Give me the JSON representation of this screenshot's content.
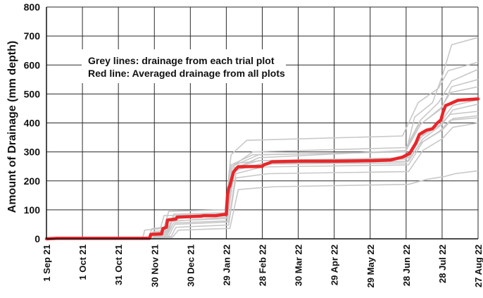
{
  "chart_data": {
    "type": "line",
    "ylabel": "Amount of Drainage (mm depth)",
    "xlabel": "",
    "ylim": [
      0,
      800
    ],
    "yticks": [
      0,
      100,
      200,
      300,
      400,
      500,
      600,
      700,
      800
    ],
    "xlim": [
      "2021-09-01",
      "2022-08-27"
    ],
    "xticks": [
      {
        "date": "2021-09-01",
        "label": "1 Sep 21"
      },
      {
        "date": "2021-10-01",
        "label": "1 Oct 21"
      },
      {
        "date": "2021-10-31",
        "label": "31 Oct 21"
      },
      {
        "date": "2021-11-30",
        "label": "30 Nov 21"
      },
      {
        "date": "2021-12-30",
        "label": "30 Dec 21"
      },
      {
        "date": "2022-01-29",
        "label": "29 Jan 22"
      },
      {
        "date": "2022-02-28",
        "label": "28 Feb 22"
      },
      {
        "date": "2022-03-30",
        "label": "30 Mar 22"
      },
      {
        "date": "2022-04-29",
        "label": "29 Apr 22"
      },
      {
        "date": "2022-05-29",
        "label": "29 May 22"
      },
      {
        "date": "2022-06-28",
        "label": "28 Jun 22"
      },
      {
        "date": "2022-07-28",
        "label": "28 Jul 22"
      },
      {
        "date": "2022-08-27",
        "label": "27 Aug 22"
      }
    ],
    "grid": true,
    "annotations": [
      "Grey lines: drainage from each trial plot",
      "Red line: Averaged drainage from all plots"
    ],
    "colors": {
      "average": "#e8262a",
      "plots": "#c8c8c8",
      "grid": "#2a2a2a"
    },
    "average_series": {
      "x": [
        "2021-09-01",
        "2021-09-10",
        "2021-10-01",
        "2021-11-15",
        "2021-11-26",
        "2021-11-27",
        "2021-12-06",
        "2021-12-07",
        "2021-12-10",
        "2021-12-11",
        "2021-12-18",
        "2021-12-19",
        "2022-01-08",
        "2022-01-10",
        "2022-01-20",
        "2022-01-27",
        "2022-01-29",
        "2022-01-30",
        "2022-01-31",
        "2022-02-01",
        "2022-02-02",
        "2022-02-03",
        "2022-02-04",
        "2022-02-06",
        "2022-02-07",
        "2022-02-08",
        "2022-02-28",
        "2022-03-01",
        "2022-03-06",
        "2022-03-08",
        "2022-04-01",
        "2022-05-01",
        "2022-06-01",
        "2022-06-15",
        "2022-06-25",
        "2022-07-01",
        "2022-07-06",
        "2022-07-09",
        "2022-07-12",
        "2022-07-15",
        "2022-07-20",
        "2022-07-24",
        "2022-07-27",
        "2022-07-29",
        "2022-07-31",
        "2022-08-03",
        "2022-08-10",
        "2022-08-27"
      ],
      "y": [
        0,
        2,
        2,
        2,
        2,
        15,
        17,
        35,
        40,
        65,
        68,
        75,
        78,
        80,
        80,
        84,
        84,
        150,
        175,
        183,
        200,
        215,
        230,
        240,
        245,
        249,
        250,
        255,
        262,
        266,
        268,
        268,
        270,
        272,
        282,
        295,
        330,
        360,
        368,
        375,
        380,
        400,
        410,
        440,
        460,
        465,
        478,
        483
      ]
    },
    "plot_series": [
      {
        "x": [
          "2021-09-01",
          "2021-11-20",
          "2021-11-22",
          "2021-12-05",
          "2021-12-08",
          "2022-01-28",
          "2022-02-02",
          "2022-02-20",
          "2022-06-28",
          "2022-07-05",
          "2022-07-20",
          "2022-07-28",
          "2022-08-05",
          "2022-08-27"
        ],
        "y": [
          0,
          0,
          30,
          35,
          80,
          85,
          255,
          290,
          300,
          420,
          470,
          560,
          670,
          695
        ]
      },
      {
        "x": [
          "2021-09-01",
          "2021-11-25",
          "2021-11-28",
          "2021-12-08",
          "2021-12-12",
          "2022-01-28",
          "2022-02-02",
          "2022-02-15",
          "2022-06-25",
          "2022-07-08",
          "2022-07-25",
          "2022-08-02",
          "2022-08-27"
        ],
        "y": [
          0,
          0,
          35,
          40,
          95,
          100,
          290,
          340,
          355,
          470,
          520,
          580,
          610
        ]
      },
      {
        "x": [
          "2021-09-01",
          "2021-11-26",
          "2021-11-28",
          "2021-12-10",
          "2021-12-15",
          "2022-01-29",
          "2022-02-03",
          "2022-02-20",
          "2022-06-28",
          "2022-07-10",
          "2022-07-25",
          "2022-08-05",
          "2022-08-27"
        ],
        "y": [
          0,
          0,
          20,
          25,
          70,
          80,
          250,
          300,
          315,
          410,
          470,
          545,
          585
        ]
      },
      {
        "x": [
          "2021-09-01",
          "2021-11-27",
          "2021-11-29",
          "2021-12-10",
          "2021-12-14",
          "2022-01-30",
          "2022-02-04",
          "2022-02-25",
          "2022-06-28",
          "2022-07-10",
          "2022-07-28",
          "2022-08-05",
          "2022-08-27"
        ],
        "y": [
          0,
          0,
          15,
          20,
          60,
          75,
          240,
          280,
          305,
          395,
          455,
          525,
          550
        ]
      },
      {
        "x": [
          "2021-09-01",
          "2021-11-25",
          "2021-11-27",
          "2021-12-08",
          "2021-12-12",
          "2022-01-29",
          "2022-02-03",
          "2022-02-25",
          "2022-06-27",
          "2022-07-08",
          "2022-07-26",
          "2022-08-04",
          "2022-08-27"
        ],
        "y": [
          0,
          0,
          12,
          18,
          70,
          80,
          250,
          290,
          300,
          390,
          445,
          505,
          525
        ]
      },
      {
        "x": [
          "2021-09-01",
          "2021-11-28",
          "2021-11-30",
          "2021-12-10",
          "2021-12-15",
          "2022-01-30",
          "2022-02-05",
          "2022-02-25",
          "2022-06-30",
          "2022-07-12",
          "2022-07-28",
          "2022-08-06",
          "2022-08-27"
        ],
        "y": [
          0,
          0,
          10,
          15,
          62,
          70,
          245,
          270,
          280,
          360,
          410,
          460,
          480
        ]
      },
      {
        "x": [
          "2021-09-01",
          "2021-11-28",
          "2021-11-30",
          "2021-12-11",
          "2021-12-16",
          "2022-01-30",
          "2022-02-04",
          "2022-02-28",
          "2022-06-30",
          "2022-07-12",
          "2022-07-28",
          "2022-08-06",
          "2022-08-27"
        ],
        "y": [
          0,
          0,
          8,
          14,
          55,
          62,
          235,
          260,
          268,
          345,
          395,
          445,
          465
        ]
      },
      {
        "x": [
          "2021-09-01",
          "2021-11-26",
          "2021-11-28",
          "2021-12-12",
          "2021-12-16",
          "2022-01-29",
          "2022-02-05",
          "2022-02-28",
          "2022-06-28",
          "2022-07-08",
          "2022-07-25",
          "2022-08-04",
          "2022-08-27"
        ],
        "y": [
          0,
          0,
          20,
          25,
          85,
          90,
          260,
          270,
          275,
          345,
          390,
          430,
          440
        ]
      },
      {
        "x": [
          "2021-09-01",
          "2021-11-29",
          "2021-12-01",
          "2021-12-12",
          "2021-12-17",
          "2022-01-31",
          "2022-02-06",
          "2022-02-28",
          "2022-06-30",
          "2022-07-12",
          "2022-07-28",
          "2022-08-06",
          "2022-08-27"
        ],
        "y": [
          0,
          0,
          5,
          10,
          50,
          58,
          225,
          248,
          255,
          335,
          375,
          415,
          425
        ]
      },
      {
        "x": [
          "2021-09-01",
          "2021-11-30",
          "2021-12-02",
          "2021-12-14",
          "2021-12-18",
          "2022-01-31",
          "2022-02-06",
          "2022-03-05",
          "2022-06-30",
          "2022-07-12",
          "2022-07-28",
          "2022-08-06",
          "2022-08-27"
        ],
        "y": [
          0,
          0,
          5,
          8,
          40,
          48,
          210,
          225,
          232,
          305,
          345,
          385,
          400
        ]
      },
      {
        "x": [
          "2021-09-01",
          "2021-11-27",
          "2021-11-29",
          "2021-12-12",
          "2021-12-16",
          "2022-01-30",
          "2022-02-05",
          "2022-03-01",
          "2022-06-28",
          "2022-07-10",
          "2022-07-26",
          "2022-08-04",
          "2022-08-27"
        ],
        "y": [
          0,
          0,
          25,
          30,
          75,
          82,
          240,
          258,
          262,
          330,
          372,
          410,
          418
        ]
      },
      {
        "x": [
          "2021-09-01",
          "2021-12-01",
          "2021-12-03",
          "2021-12-15",
          "2021-12-20",
          "2022-02-01",
          "2022-02-08",
          "2022-03-10",
          "2022-06-30",
          "2022-07-15",
          "2022-07-30",
          "2022-08-08",
          "2022-08-27"
        ],
        "y": [
          0,
          0,
          3,
          5,
          30,
          36,
          170,
          180,
          188,
          205,
          215,
          225,
          235
        ]
      }
    ]
  }
}
